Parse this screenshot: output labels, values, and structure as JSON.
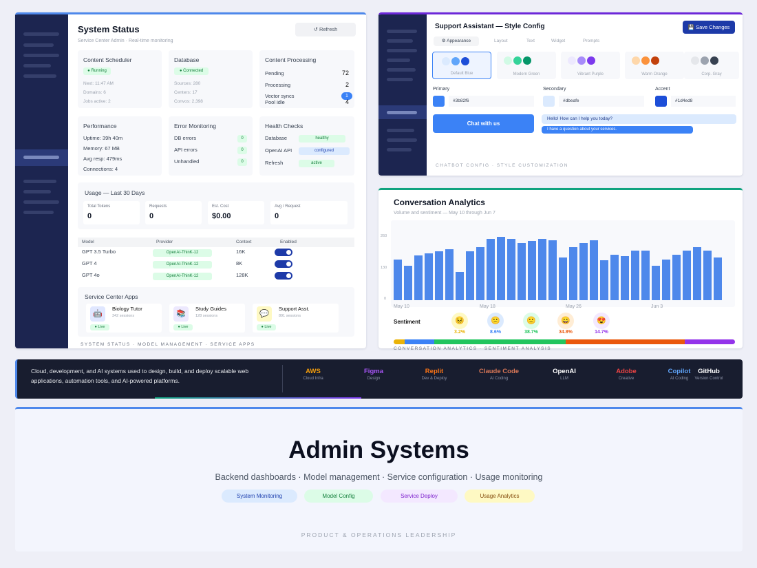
{
  "status": {
    "title": "System Status",
    "subtitle": "Service Center Admin · Real-time monitoring",
    "refresh_label": "↺ Refresh",
    "scheduler": {
      "title": "Content Scheduler",
      "badge": "● Running",
      "next": "Next: 11:47 AM",
      "domains": "Domains: 6",
      "jobs": "Jobs active: 2"
    },
    "database": {
      "title": "Database",
      "badge": "● Connected",
      "sources": "Sources: 280",
      "centers": "Centers: 17",
      "convos": "Convos: 2,398"
    },
    "processing": {
      "title": "Content Processing",
      "pending_label": "Pending",
      "pending": "72",
      "processing_label": "Processing",
      "processing": "2",
      "vector_label": "Vector syncs",
      "vector": "1",
      "pool_label": "Pool idle",
      "pool": "4"
    },
    "performance": {
      "title": "Performance",
      "uptime": "Uptime: 39h 40m",
      "memory": "Memory: 67 MB",
      "resp": "Avg resp: 479ms",
      "conns": "Connections: 4"
    },
    "errors": {
      "title": "Error Monitoring",
      "rows": [
        {
          "label": "DB errors",
          "value": "0"
        },
        {
          "label": "API errors",
          "value": "0"
        },
        {
          "label": "Unhandled",
          "value": "0"
        }
      ]
    },
    "health": {
      "title": "Health Checks",
      "rows": [
        {
          "label": "Database",
          "status": "healthy"
        },
        {
          "label": "OpenAI API",
          "status": "configured"
        },
        {
          "label": "Refresh",
          "status": "active"
        }
      ]
    },
    "usage": {
      "title": "Usage — Last 30 Days",
      "stats": [
        {
          "label": "Total Tokens",
          "value": "0"
        },
        {
          "label": "Requests",
          "value": "0"
        },
        {
          "label": "Est. Cost",
          "value": "$0.00"
        },
        {
          "label": "Avg / Request",
          "value": "0"
        }
      ]
    },
    "models": {
      "headers": [
        "Model",
        "Provider",
        "Context",
        "Enabled"
      ],
      "rows": [
        {
          "model": "GPT 3.5 Turbo",
          "provider": "OpenAI-ThinK-12",
          "context": "16K"
        },
        {
          "model": "GPT 4",
          "provider": "OpenAI-ThinK-12",
          "context": "8K"
        },
        {
          "model": "GPT 4o",
          "provider": "OpenAI-ThinK-12",
          "context": "128K"
        }
      ]
    },
    "apps": {
      "title": "Service Center Apps",
      "items": [
        {
          "name": "Biology Tutor",
          "sub": "342 sessions",
          "badge": "● Live"
        },
        {
          "name": "Study Guides",
          "sub": "128 sessions",
          "badge": "● Live"
        },
        {
          "name": "Support Asst.",
          "sub": "891 sessions",
          "badge": "● Live"
        }
      ]
    },
    "caption": "SYSTEM STATUS · MODEL MANAGEMENT · SERVICE APPS"
  },
  "config": {
    "title": "Support Assistant — Style Config",
    "save_label": "💾 Save Changes",
    "tabs": [
      "⚙ Appearance",
      "Layout",
      "Text",
      "Widget",
      "Prompts"
    ],
    "presets": [
      "Default Blue",
      "Modern Green",
      "Vibrant Purple",
      "Warm Orange",
      "Corp. Gray"
    ],
    "primary": {
      "label": "Primary",
      "hex": "#3b82f6"
    },
    "secondary": {
      "label": "Secondary",
      "hex": "#dbeafe"
    },
    "accent": {
      "label": "Accent",
      "hex": "#1d4ed8"
    },
    "chat_button": "Chat with us",
    "bot_msg": "Hello! How can I help you today?",
    "user_msg": "I have a question about your services.",
    "caption": "CHATBOT CONFIG · STYLE CUSTOMIZATION"
  },
  "analytics": {
    "title": "Conversation Analytics",
    "subtitle": "Volume and sentiment — May 10 through Jun 7",
    "sentiment_label": "Sentiment",
    "sentiment": [
      {
        "icon": "😣",
        "pct": "3.2%",
        "color": "#eab308",
        "bg": "#fef9c3"
      },
      {
        "icon": "😕",
        "pct": "8.6%",
        "color": "#3b82f6",
        "bg": "#dbeafe"
      },
      {
        "icon": "🙂",
        "pct": "38.7%",
        "color": "#22c55e",
        "bg": "#dcfce7"
      },
      {
        "icon": "😀",
        "pct": "34.8%",
        "color": "#ea580c",
        "bg": "#ffedd5"
      },
      {
        "icon": "😍",
        "pct": "14.7%",
        "color": "#9333ea",
        "bg": "#f3e8ff"
      }
    ],
    "caption": "CONVERSATION ANALYTICS · SENTIMENT ANALYSIS"
  },
  "chart_data": {
    "type": "bar",
    "title": "",
    "xlabel": "",
    "ylabel": "",
    "xticks": [
      "May 10",
      "May 18",
      "May 26",
      "Jun 3"
    ],
    "yticks": [
      "0",
      "130",
      "260"
    ],
    "ylim": [
      0,
      260
    ],
    "values": [
      100,
      85,
      110,
      115,
      120,
      125,
      70,
      120,
      130,
      150,
      155,
      150,
      140,
      145,
      150,
      148,
      105,
      130,
      140,
      148,
      98,
      112,
      108,
      122,
      122,
      84,
      100,
      112,
      122,
      130,
      122,
      105
    ],
    "sentiment_split": [
      3.2,
      8.6,
      38.7,
      34.8,
      14.7
    ]
  },
  "stack": {
    "text": "Cloud, development, and AI systems used to design, build, and deploy scalable web applications, automation tools, and AI-powered platforms.",
    "brands": [
      {
        "name": "AWS",
        "sub": "Cloud Infra",
        "color": "#f59e0b"
      },
      {
        "name": "Figma",
        "sub": "Design",
        "color": "#a855f7"
      },
      {
        "name": "Replit",
        "sub": "Dev & Deploy",
        "color": "#f97316"
      },
      {
        "name": "Claude Code",
        "sub": "AI Coding",
        "color": "#d97757"
      },
      {
        "name": "OpenAI",
        "sub": "LLM",
        "color": "#ffffff"
      },
      {
        "name": "Adobe",
        "sub": "Creative",
        "color": "#ef4444"
      },
      {
        "name": "Copilot",
        "sub": "AI Coding",
        "color": "#60a5fa"
      },
      {
        "name": "GitHub",
        "sub": "Version Control",
        "color": "#ffffff"
      }
    ]
  },
  "hero": {
    "title": "Admin Systems",
    "subtitle": "Backend dashboards · Model management · Service configuration · Usage monitoring",
    "chips": [
      "System Monitoring",
      "Model Config",
      "Service Deploy",
      "Usage Analytics"
    ],
    "footer": "PRODUCT & OPERATIONS LEADERSHIP"
  }
}
